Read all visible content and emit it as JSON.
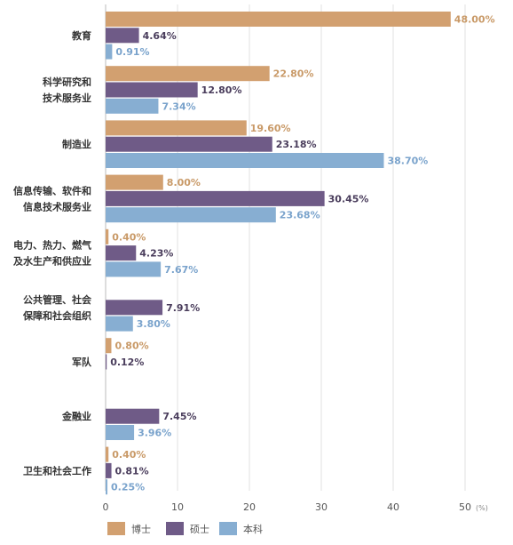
{
  "chart_data": {
    "type": "bar",
    "orientation": "horizontal",
    "title": "",
    "xlabel": "",
    "ylabel": "",
    "unit": "(%)",
    "xlim": [
      0,
      50
    ],
    "xticks": [
      0,
      10,
      20,
      30,
      40,
      50
    ],
    "grid": "vertical",
    "legend_position": "bottom",
    "categories": [
      [
        "教育"
      ],
      [
        "科学研究和",
        "技术服务业"
      ],
      [
        "制造业"
      ],
      [
        "信息传输、软件和",
        "信息技术服务业"
      ],
      [
        "电力、热力、燃气",
        "及水生产和供应业"
      ],
      [
        "公共管理、社会",
        "保障和社会组织"
      ],
      [
        "军队"
      ],
      [
        "金融业"
      ],
      [
        "卫生和社会工作"
      ]
    ],
    "series": [
      {
        "name": "博士",
        "color": "#D2A070",
        "label_color": "#C99A68",
        "values": [
          48.0,
          22.8,
          19.6,
          8.0,
          0.4,
          null,
          0.8,
          null,
          0.4
        ],
        "labels": [
          "48.00%",
          "22.80%",
          "19.60%",
          "8.00%",
          "0.40%",
          null,
          "0.80%",
          null,
          "0.40%"
        ]
      },
      {
        "name": "硕士",
        "color": "#6F5B87",
        "label_color": "#4A3D5C",
        "values": [
          4.64,
          12.8,
          23.18,
          30.45,
          4.23,
          7.91,
          0.12,
          7.45,
          0.81
        ],
        "labels": [
          "4.64%",
          "12.80%",
          "23.18%",
          "30.45%",
          "4.23%",
          "7.91%",
          "0.12%",
          "7.45%",
          "0.81%"
        ]
      },
      {
        "name": "本科",
        "color": "#87AED2",
        "label_color": "#7AA3CC",
        "values": [
          0.91,
          7.34,
          38.7,
          23.68,
          7.67,
          3.8,
          null,
          3.96,
          0.25
        ],
        "labels": [
          "0.91%",
          "7.34%",
          "38.70%",
          "23.68%",
          "7.67%",
          "3.80%",
          null,
          "3.96%",
          "0.25%"
        ]
      }
    ]
  }
}
